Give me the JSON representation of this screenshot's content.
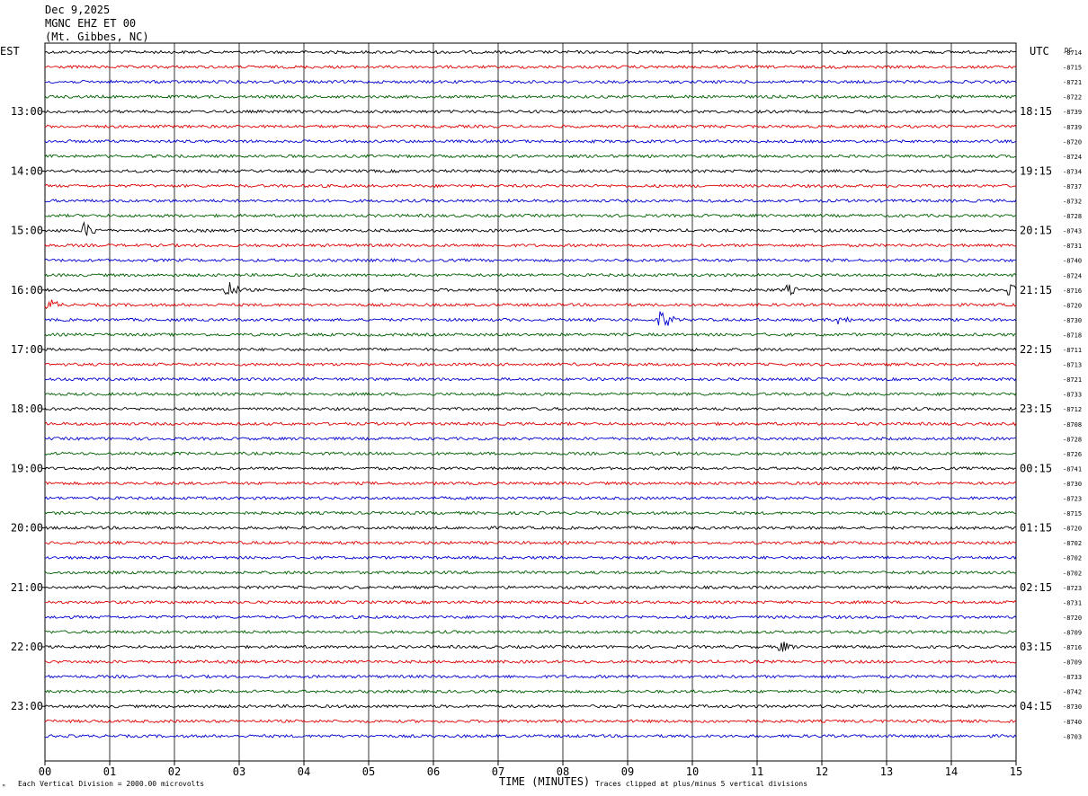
{
  "header": {
    "date": "Dec 9,2025",
    "station": "MGNC EHZ ET 00",
    "location": "(Mt. Gibbes, NC)"
  },
  "left_tz": "EST",
  "right_tz": "UTC",
  "dc_label": "DC",
  "footer": {
    "scale_note": "Each Vertical Division = 2000.00 microvolts",
    "clip_note": "Traces clipped at plus/minus 5 vertical divisions",
    "corner_mark": "ᴹ"
  },
  "chart_data": {
    "type": "line",
    "title": "",
    "xlabel": "TIME (MINUTES)",
    "x_ticks": [
      "00",
      "01",
      "02",
      "03",
      "04",
      "05",
      "06",
      "07",
      "08",
      "09",
      "10",
      "11",
      "12",
      "13",
      "14",
      "15"
    ],
    "xlim": [
      0,
      15
    ],
    "grid": true,
    "trace_colors": [
      "#000000",
      "#e00000",
      "#0000d0",
      "#006000"
    ],
    "left_hour_labels": [
      "13:00",
      "14:00",
      "15:00",
      "16:00",
      "17:00",
      "18:00",
      "19:00",
      "20:00",
      "21:00",
      "22:00",
      "23:00"
    ],
    "right_hour_labels": [
      "18:15",
      "19:15",
      "20:15",
      "21:15",
      "22:15",
      "23:15",
      "00:15",
      "01:15",
      "02:15",
      "03:15",
      "04:15"
    ],
    "dc_offsets": [
      -8714,
      -8715,
      -8721,
      -8722,
      -8739,
      -8739,
      -8720,
      -8724,
      -8734,
      -8737,
      -8732,
      -8728,
      -8743,
      -8731,
      -8740,
      -8724,
      -8716,
      -8720,
      -8730,
      -8718,
      -8711,
      -8713,
      -8721,
      -8733,
      -8712,
      -8708,
      -8728,
      -8726,
      -8741,
      -8730,
      -8723,
      -8715,
      -8720,
      -8702,
      -8702,
      -8702,
      -8723,
      -8731,
      -8720,
      -8709,
      -8716,
      -8709,
      -8733,
      -8742,
      -8730,
      -8740,
      -8703
    ],
    "events": [
      {
        "trace": 12,
        "minute": 0.65,
        "amplitude": 9
      },
      {
        "trace": 16,
        "minute": 2.85,
        "amplitude": 10
      },
      {
        "trace": 16,
        "minute": 11.5,
        "amplitude": 6
      },
      {
        "trace": 16,
        "minute": 14.95,
        "amplitude": 6
      },
      {
        "trace": 17,
        "minute": 0.1,
        "amplitude": 7
      },
      {
        "trace": 18,
        "minute": 9.55,
        "amplitude": 11
      },
      {
        "trace": 18,
        "minute": 12.3,
        "amplitude": 6
      },
      {
        "trace": 40,
        "minute": 11.4,
        "amplitude": 7
      }
    ]
  }
}
